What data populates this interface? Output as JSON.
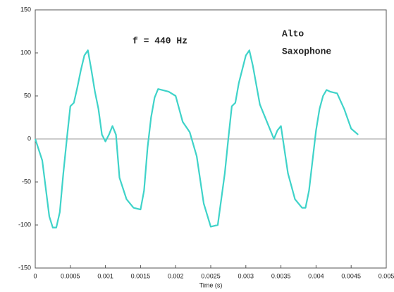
{
  "chart_data": {
    "type": "line",
    "annotations": [
      "f = 440 Hz",
      "Alto",
      "Saxophone"
    ],
    "xlabel": "Time (s)",
    "x": [
      0,
      0.0001,
      0.0002,
      0.00025,
      0.0003,
      0.00035,
      0.0004,
      0.00045,
      0.0005,
      0.00055,
      0.0006,
      0.00065,
      0.0007,
      0.00075,
      0.0008,
      0.00085,
      0.0009,
      0.00095,
      0.001,
      0.00105,
      0.0011,
      0.00115,
      0.0012,
      0.0013,
      0.0014,
      0.0015,
      0.00155,
      0.0016,
      0.00165,
      0.0017,
      0.00175,
      0.0018,
      0.0019,
      0.002,
      0.0021,
      0.0022,
      0.0023,
      0.0024,
      0.0025,
      0.0026,
      0.0027,
      0.00275,
      0.0028,
      0.00285,
      0.0029,
      0.003,
      0.00305,
      0.0031,
      0.0032,
      0.0033,
      0.0034,
      0.00345,
      0.0035,
      0.0036,
      0.0037,
      0.0038,
      0.00385,
      0.0039,
      0.004,
      0.00405,
      0.0041,
      0.00415,
      0.0042,
      0.0043,
      0.0044,
      0.0045,
      0.0046
    ],
    "series": [
      {
        "color": "#3fd3c9",
        "values": [
          0,
          -25,
          -90,
          -103,
          -103,
          -85,
          -40,
          0,
          38,
          42,
          60,
          80,
          97,
          103,
          80,
          55,
          35,
          5,
          -3,
          5,
          15,
          5,
          -45,
          -70,
          -80,
          -82,
          -60,
          -10,
          25,
          48,
          58,
          57,
          55,
          50,
          20,
          8,
          -20,
          -75,
          -102,
          -100,
          -40,
          0,
          38,
          42,
          65,
          97,
          103,
          85,
          40,
          20,
          0,
          10,
          15,
          -40,
          -70,
          -80,
          -80,
          -60,
          10,
          35,
          50,
          57,
          55,
          53,
          35,
          12,
          5
        ]
      }
    ],
    "xlim": [
      0,
      0.005
    ],
    "xticks": [
      0,
      0.0005,
      0.001,
      0.0015,
      0.002,
      0.0025,
      0.003,
      0.0035,
      0.004,
      0.0045,
      0.005
    ],
    "ylim": [
      -150,
      150
    ],
    "yticks": [
      -150,
      -100,
      -50,
      0,
      50,
      100,
      150
    ]
  }
}
